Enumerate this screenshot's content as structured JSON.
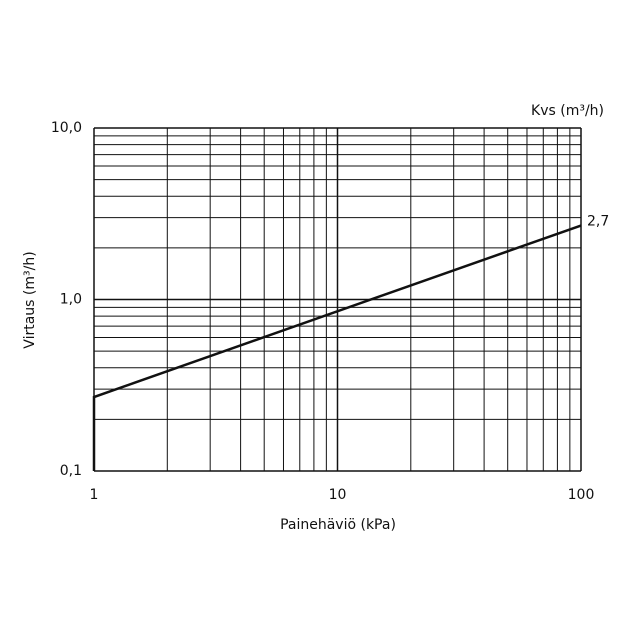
{
  "chart_data": {
    "type": "line",
    "log_x": true,
    "log_y": true,
    "grid": true,
    "x_label": "Painehäviö (kPa)",
    "y_label": "Virtaus (m³/h)",
    "annotation": "Kvs (m³/h)",
    "x": [
      1,
      1,
      100
    ],
    "series": [
      {
        "name": "Kvs 2,7",
        "color": "#111111",
        "values": [
          0.1,
          0.27,
          2.7
        ],
        "value_labels": [
          null,
          null,
          "2,7"
        ]
      }
    ],
    "xlim": [
      1,
      100
    ],
    "ylim": [
      0.1,
      10
    ],
    "xticks": [
      1,
      10,
      100
    ],
    "yticks": [
      {
        "value": 0.1,
        "label": "0,1"
      },
      {
        "value": 1,
        "label": "1,0"
      },
      {
        "value": 10,
        "label": "10,0"
      }
    ],
    "x_minor_ticks": [
      2,
      3,
      4,
      5,
      6,
      7,
      8,
      9,
      20,
      30,
      40,
      50,
      60,
      70,
      80,
      90
    ],
    "y_minor_ticks": [
      0.2,
      0.3,
      0.4,
      0.5,
      0.6,
      0.7,
      0.8,
      0.9,
      2,
      3,
      4,
      5,
      6,
      7,
      8,
      9
    ]
  }
}
